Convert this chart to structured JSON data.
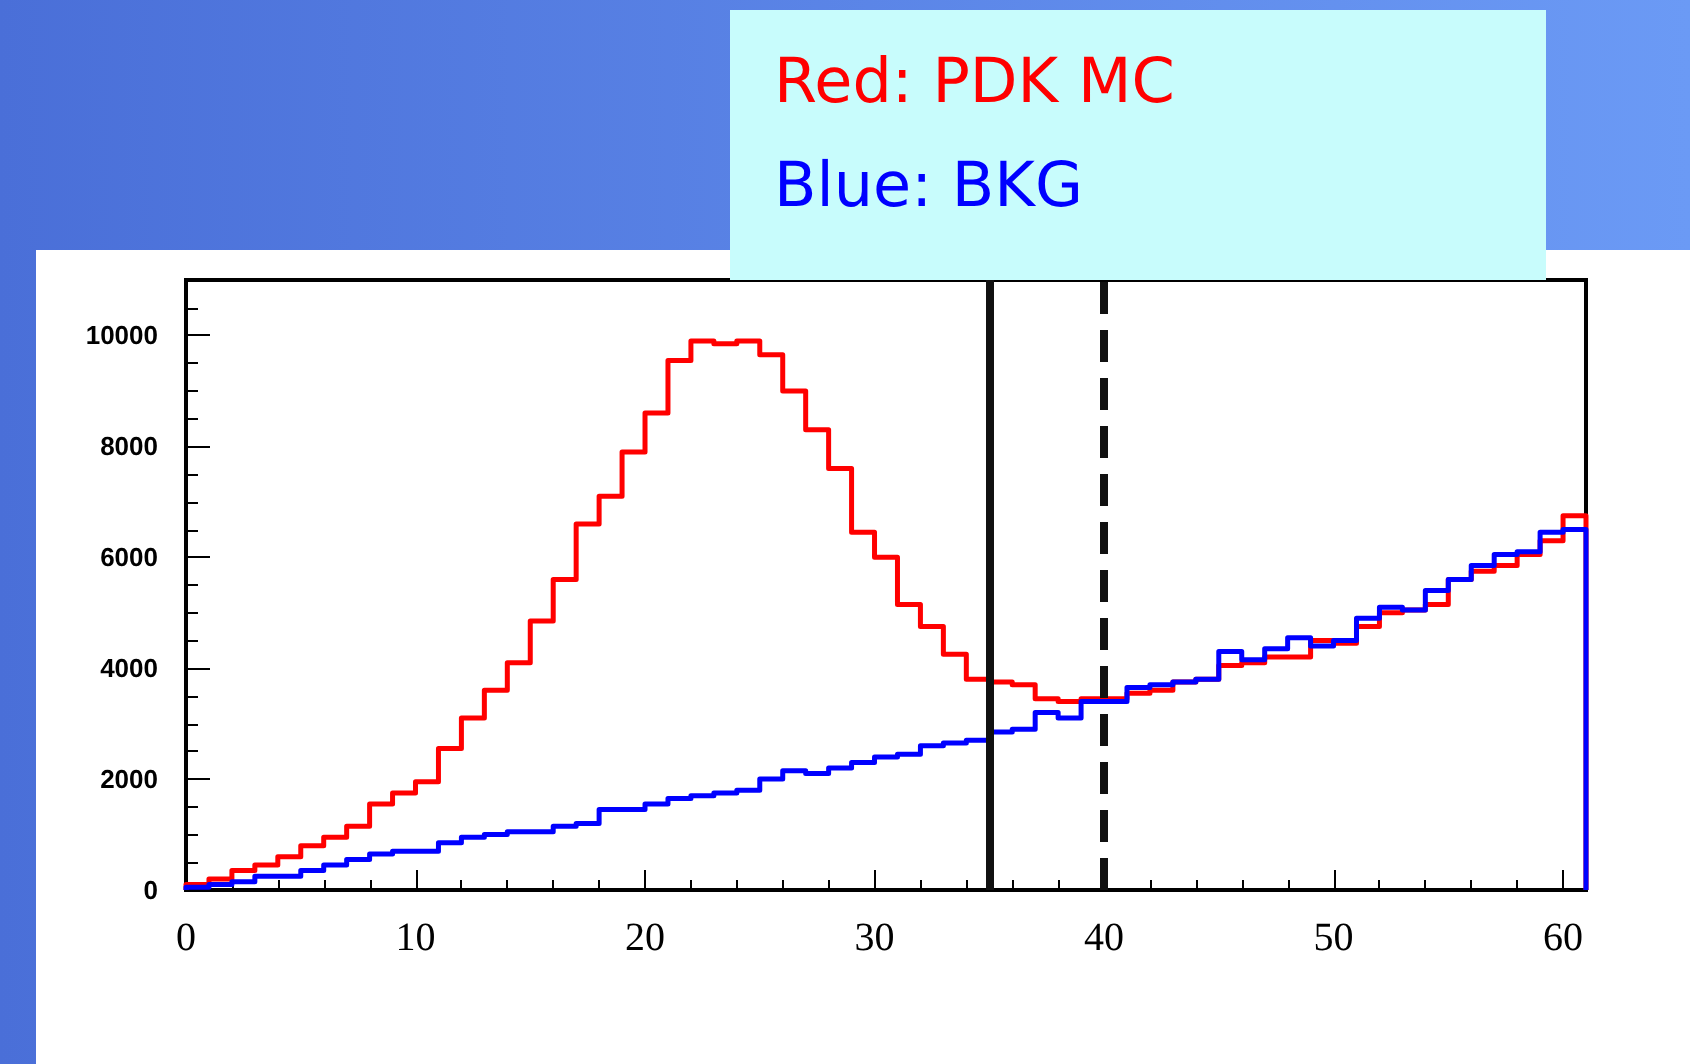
{
  "chart_data": {
    "type": "histogram",
    "bins": [
      0,
      1,
      2,
      3,
      4,
      5,
      6,
      7,
      8,
      9,
      10,
      11,
      12,
      13,
      14,
      15,
      16,
      17,
      18,
      19,
      20,
      21,
      22,
      23,
      24,
      25,
      26,
      27,
      28,
      29,
      30,
      31,
      32,
      33,
      34,
      35,
      36,
      37,
      38,
      39,
      40,
      41,
      42,
      43,
      44,
      45,
      46,
      47,
      48,
      49,
      50,
      51,
      52,
      53,
      54,
      55,
      56,
      57,
      58,
      59,
      60,
      61
    ],
    "series": [
      {
        "color": "#ff0000",
        "values": [
          100,
          200,
          350,
          450,
          600,
          800,
          950,
          1150,
          1550,
          1750,
          1950,
          2550,
          3100,
          3600,
          4100,
          4850,
          5600,
          6600,
          7100,
          7900,
          8600,
          9550,
          9900,
          9850,
          9900,
          9650,
          9000,
          8300,
          7600,
          6450,
          6000,
          5150,
          4750,
          4250,
          3800,
          3750,
          3700,
          3450,
          3400,
          3450,
          3450,
          3550,
          3600,
          3750,
          3800,
          4050,
          4100,
          4200,
          4200,
          4500,
          4450,
          4750,
          5000,
          5050,
          5150,
          5600,
          5750,
          5850,
          6050,
          6300,
          6750
        ]
      },
      {
        "color": "#0000ff",
        "values": [
          50,
          100,
          150,
          250,
          250,
          350,
          450,
          550,
          650,
          700,
          700,
          850,
          950,
          1000,
          1050,
          1050,
          1150,
          1200,
          1450,
          1450,
          1550,
          1650,
          1700,
          1750,
          1800,
          2000,
          2150,
          2100,
          2200,
          2300,
          2400,
          2450,
          2600,
          2650,
          2700,
          2850,
          2900,
          3200,
          3100,
          3400,
          3400,
          3650,
          3700,
          3750,
          3800,
          4300,
          4150,
          4350,
          4550,
          4400,
          4500,
          4900,
          5100,
          5050,
          5400,
          5600,
          5850,
          6050,
          6100,
          6450,
          6500
        ]
      }
    ],
    "xlim": [
      0,
      61
    ],
    "xticks": [
      0,
      10,
      20,
      30,
      40,
      50,
      60
    ],
    "ylim": [
      0,
      11000
    ],
    "yticks": [
      0,
      2000,
      4000,
      6000,
      8000,
      10000
    ],
    "grid": false,
    "ref_lines": [
      {
        "axis": "x",
        "value": 35,
        "color": "#111111",
        "line_style": "solid"
      },
      {
        "axis": "x",
        "value": 40,
        "color": "#111111",
        "line_style": "dashed"
      }
    ],
    "annotations": [
      "Red: PDK MC",
      "Blue: BKG"
    ]
  }
}
